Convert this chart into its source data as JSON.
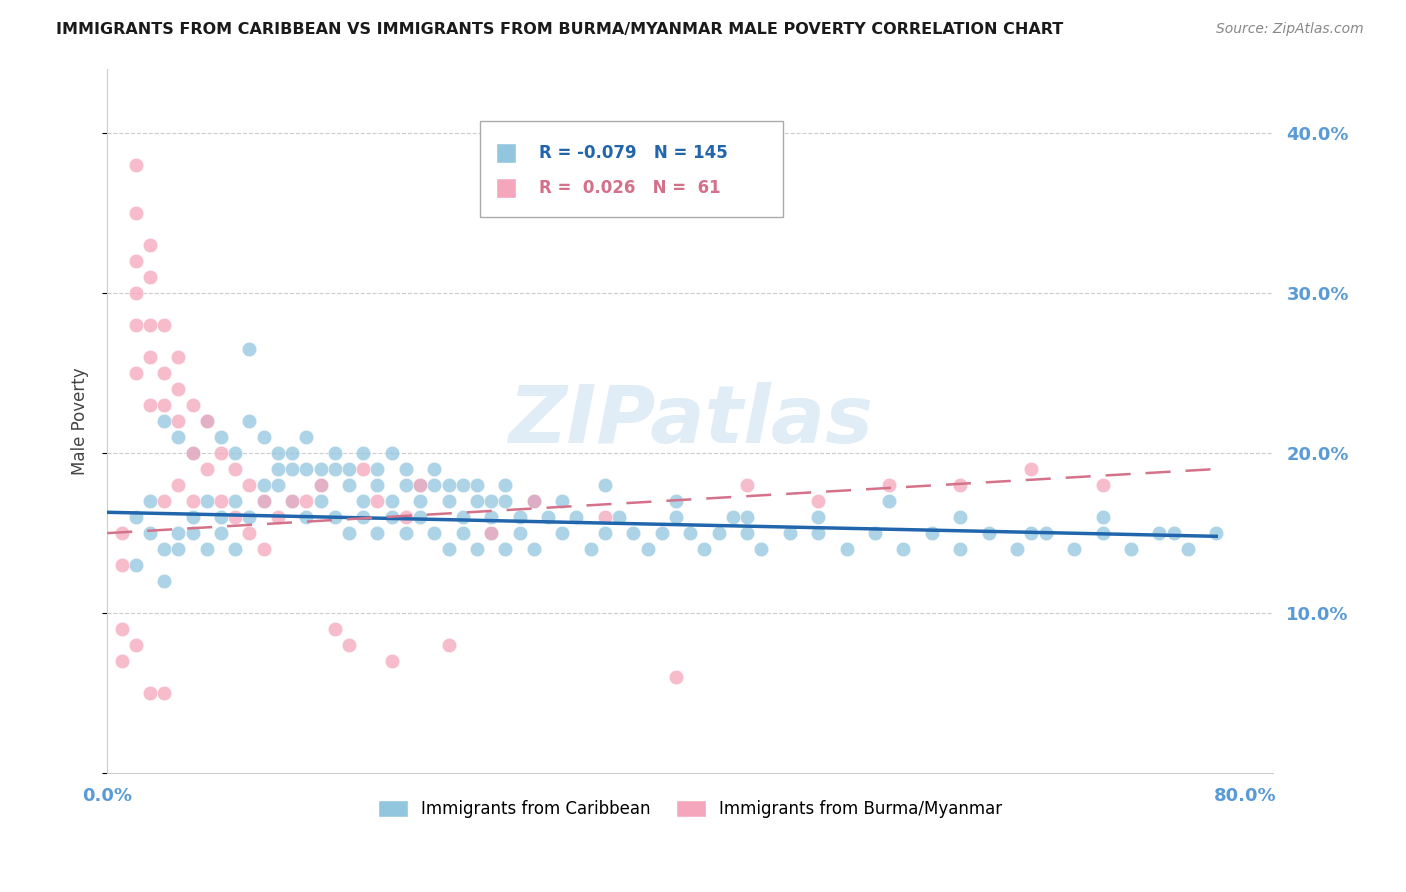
{
  "title": "IMMIGRANTS FROM CARIBBEAN VS IMMIGRANTS FROM BURMA/MYANMAR MALE POVERTY CORRELATION CHART",
  "source": "Source: ZipAtlas.com",
  "ylabel": "Male Poverty",
  "xlim": [
    0.0,
    0.82
  ],
  "ylim": [
    0.0,
    0.44
  ],
  "ytick_positions": [
    0.0,
    0.1,
    0.2,
    0.3,
    0.4
  ],
  "ytick_labels": [
    "",
    "10.0%",
    "20.0%",
    "30.0%",
    "40.0%"
  ],
  "xtick_positions": [
    0.0,
    0.1,
    0.2,
    0.3,
    0.4,
    0.5,
    0.6,
    0.7,
    0.8
  ],
  "xtick_labels": [
    "0.0%",
    "",
    "",
    "",
    "",
    "",
    "",
    "",
    "80.0%"
  ],
  "watermark": "ZIPatlas",
  "color_blue": "#92c5de",
  "color_pink": "#f4a6bc",
  "color_blue_line": "#2166ac",
  "color_pink_line": "#d4728a",
  "color_axis_labels": "#5b9bd5",
  "color_grid": "#cccccc",
  "background": "#ffffff",
  "blue_line_x": [
    0.0,
    0.78
  ],
  "blue_line_y": [
    0.163,
    0.148
  ],
  "pink_line_x": [
    0.0,
    0.78
  ],
  "pink_line_y": [
    0.15,
    0.19
  ],
  "blue_x": [
    0.02,
    0.03,
    0.04,
    0.02,
    0.03,
    0.05,
    0.04,
    0.06,
    0.05,
    0.07,
    0.06,
    0.08,
    0.07,
    0.09,
    0.08,
    0.1,
    0.09,
    0.11,
    0.1,
    0.12,
    0.11,
    0.13,
    0.12,
    0.14,
    0.13,
    0.15,
    0.14,
    0.16,
    0.15,
    0.17,
    0.16,
    0.18,
    0.17,
    0.19,
    0.18,
    0.2,
    0.19,
    0.21,
    0.2,
    0.22,
    0.21,
    0.23,
    0.22,
    0.24,
    0.23,
    0.25,
    0.24,
    0.26,
    0.25,
    0.27,
    0.26,
    0.28,
    0.27,
    0.29,
    0.28,
    0.3,
    0.29,
    0.31,
    0.3,
    0.32,
    0.33,
    0.34,
    0.35,
    0.36,
    0.37,
    0.38,
    0.39,
    0.4,
    0.41,
    0.42,
    0.43,
    0.44,
    0.45,
    0.46,
    0.48,
    0.5,
    0.52,
    0.54,
    0.56,
    0.58,
    0.6,
    0.62,
    0.64,
    0.66,
    0.68,
    0.7,
    0.72,
    0.74,
    0.76,
    0.78,
    0.04,
    0.05,
    0.06,
    0.07,
    0.08,
    0.09,
    0.1,
    0.11,
    0.12,
    0.13,
    0.14,
    0.15,
    0.16,
    0.17,
    0.18,
    0.19,
    0.2,
    0.21,
    0.22,
    0.23,
    0.24,
    0.25,
    0.26,
    0.27,
    0.28,
    0.3,
    0.32,
    0.35,
    0.4,
    0.45,
    0.5,
    0.55,
    0.6,
    0.65,
    0.7,
    0.75
  ],
  "blue_y": [
    0.16,
    0.15,
    0.14,
    0.13,
    0.17,
    0.15,
    0.12,
    0.16,
    0.14,
    0.17,
    0.15,
    0.16,
    0.14,
    0.17,
    0.15,
    0.265,
    0.14,
    0.18,
    0.16,
    0.19,
    0.17,
    0.2,
    0.18,
    0.19,
    0.17,
    0.18,
    0.16,
    0.19,
    0.17,
    0.18,
    0.16,
    0.17,
    0.15,
    0.18,
    0.16,
    0.17,
    0.15,
    0.18,
    0.16,
    0.17,
    0.15,
    0.18,
    0.16,
    0.17,
    0.15,
    0.16,
    0.14,
    0.17,
    0.15,
    0.16,
    0.14,
    0.17,
    0.15,
    0.16,
    0.14,
    0.17,
    0.15,
    0.16,
    0.14,
    0.15,
    0.16,
    0.14,
    0.15,
    0.16,
    0.15,
    0.14,
    0.15,
    0.16,
    0.15,
    0.14,
    0.15,
    0.16,
    0.15,
    0.14,
    0.15,
    0.15,
    0.14,
    0.15,
    0.14,
    0.15,
    0.14,
    0.15,
    0.14,
    0.15,
    0.14,
    0.15,
    0.14,
    0.15,
    0.14,
    0.15,
    0.22,
    0.21,
    0.2,
    0.22,
    0.21,
    0.2,
    0.22,
    0.21,
    0.2,
    0.19,
    0.21,
    0.19,
    0.2,
    0.19,
    0.2,
    0.19,
    0.2,
    0.19,
    0.18,
    0.19,
    0.18,
    0.18,
    0.18,
    0.17,
    0.18,
    0.17,
    0.17,
    0.18,
    0.17,
    0.16,
    0.16,
    0.17,
    0.16,
    0.15,
    0.16,
    0.15
  ],
  "pink_x": [
    0.01,
    0.01,
    0.01,
    0.01,
    0.02,
    0.02,
    0.02,
    0.02,
    0.02,
    0.02,
    0.03,
    0.03,
    0.03,
    0.03,
    0.03,
    0.04,
    0.04,
    0.04,
    0.04,
    0.05,
    0.05,
    0.05,
    0.05,
    0.06,
    0.06,
    0.06,
    0.07,
    0.07,
    0.08,
    0.08,
    0.09,
    0.09,
    0.1,
    0.1,
    0.11,
    0.11,
    0.12,
    0.13,
    0.14,
    0.15,
    0.16,
    0.17,
    0.18,
    0.19,
    0.2,
    0.21,
    0.22,
    0.24,
    0.27,
    0.3,
    0.35,
    0.4,
    0.45,
    0.5,
    0.55,
    0.6,
    0.65,
    0.7,
    0.02,
    0.03,
    0.04
  ],
  "pink_y": [
    0.15,
    0.13,
    0.09,
    0.07,
    0.35,
    0.32,
    0.3,
    0.28,
    0.25,
    0.08,
    0.33,
    0.31,
    0.28,
    0.26,
    0.23,
    0.28,
    0.25,
    0.23,
    0.17,
    0.26,
    0.24,
    0.22,
    0.18,
    0.23,
    0.2,
    0.17,
    0.22,
    0.19,
    0.2,
    0.17,
    0.19,
    0.16,
    0.18,
    0.15,
    0.17,
    0.14,
    0.16,
    0.17,
    0.17,
    0.18,
    0.09,
    0.08,
    0.19,
    0.17,
    0.07,
    0.16,
    0.18,
    0.08,
    0.15,
    0.17,
    0.16,
    0.06,
    0.18,
    0.17,
    0.18,
    0.18,
    0.19,
    0.18,
    0.38,
    0.05,
    0.05
  ]
}
